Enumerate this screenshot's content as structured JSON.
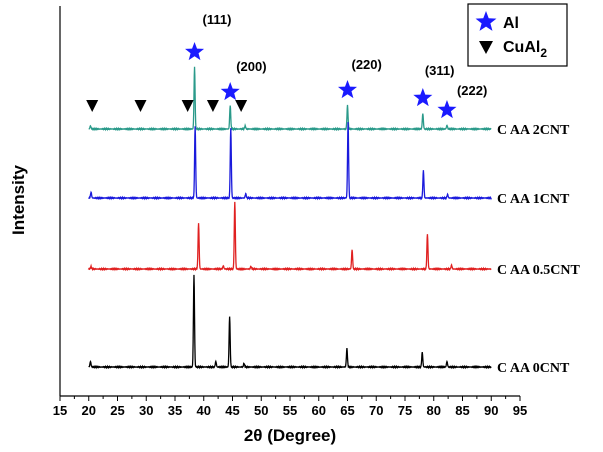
{
  "chart_data": {
    "type": "line",
    "xlabel": "2θ (Degree)",
    "ylabel": "Intensity",
    "xlim": [
      15,
      95
    ],
    "xticks": [
      15,
      20,
      25,
      30,
      35,
      40,
      45,
      50,
      55,
      60,
      65,
      70,
      75,
      80,
      85,
      90,
      95
    ],
    "grid": false,
    "legend": {
      "placement": "top-right",
      "entries": [
        {
          "label": "Al",
          "marker": "star",
          "color": "#1a1aff"
        },
        {
          "label": "CuAl",
          "subscript": "2",
          "marker": "triangle-down",
          "color": "#000000"
        }
      ]
    },
    "series": [
      {
        "name": "C AA 2CNT",
        "color": "#2a9a8a",
        "baseline": 1.0,
        "peaks": [
          [
            20.3,
            0.05
          ],
          [
            38.4,
            1.0
          ],
          [
            44.6,
            0.38
          ],
          [
            47.2,
            0.05
          ],
          [
            65.0,
            0.38
          ],
          [
            78.1,
            0.25
          ],
          [
            82.3,
            0.06
          ]
        ]
      },
      {
        "name": "C AA 1CNT",
        "color": "#1a1adc",
        "baseline": 1.0,
        "peaks": [
          [
            20.4,
            0.08
          ],
          [
            38.5,
            1.0
          ],
          [
            44.7,
            0.97
          ],
          [
            47.3,
            0.06
          ],
          [
            65.1,
            1.05
          ],
          [
            78.2,
            0.38
          ],
          [
            82.4,
            0.05
          ]
        ]
      },
      {
        "name": "C AA 0.5CNT",
        "color": "#e02020",
        "baseline": 1.0,
        "peaks": [
          [
            20.4,
            0.04
          ],
          [
            39.1,
            0.72
          ],
          [
            43.4,
            0.05
          ],
          [
            45.4,
            1.05
          ],
          [
            48.2,
            0.04
          ],
          [
            65.8,
            0.3
          ],
          [
            78.9,
            0.55
          ],
          [
            83.1,
            0.06
          ]
        ]
      },
      {
        "name": "C AA 0CNT",
        "color": "#000000",
        "baseline": 1.0,
        "peaks": [
          [
            20.3,
            0.06
          ],
          [
            38.3,
            1.0
          ],
          [
            42.1,
            0.06
          ],
          [
            44.5,
            0.55
          ],
          [
            47.0,
            0.04
          ],
          [
            64.9,
            0.2
          ],
          [
            78.0,
            0.16
          ],
          [
            82.3,
            0.06
          ]
        ]
      }
    ],
    "annotations": {
      "al_stars": [
        {
          "x": 38.4,
          "label": "(111)"
        },
        {
          "x": 44.6,
          "label": "(200)"
        },
        {
          "x": 65.0,
          "label": "(220)"
        },
        {
          "x": 78.1,
          "label": "(311)"
        },
        {
          "x": 82.3,
          "label": "(222)"
        }
      ],
      "cual2_triangles": [
        20.6,
        29.0,
        37.2,
        41.6,
        46.5
      ]
    }
  }
}
